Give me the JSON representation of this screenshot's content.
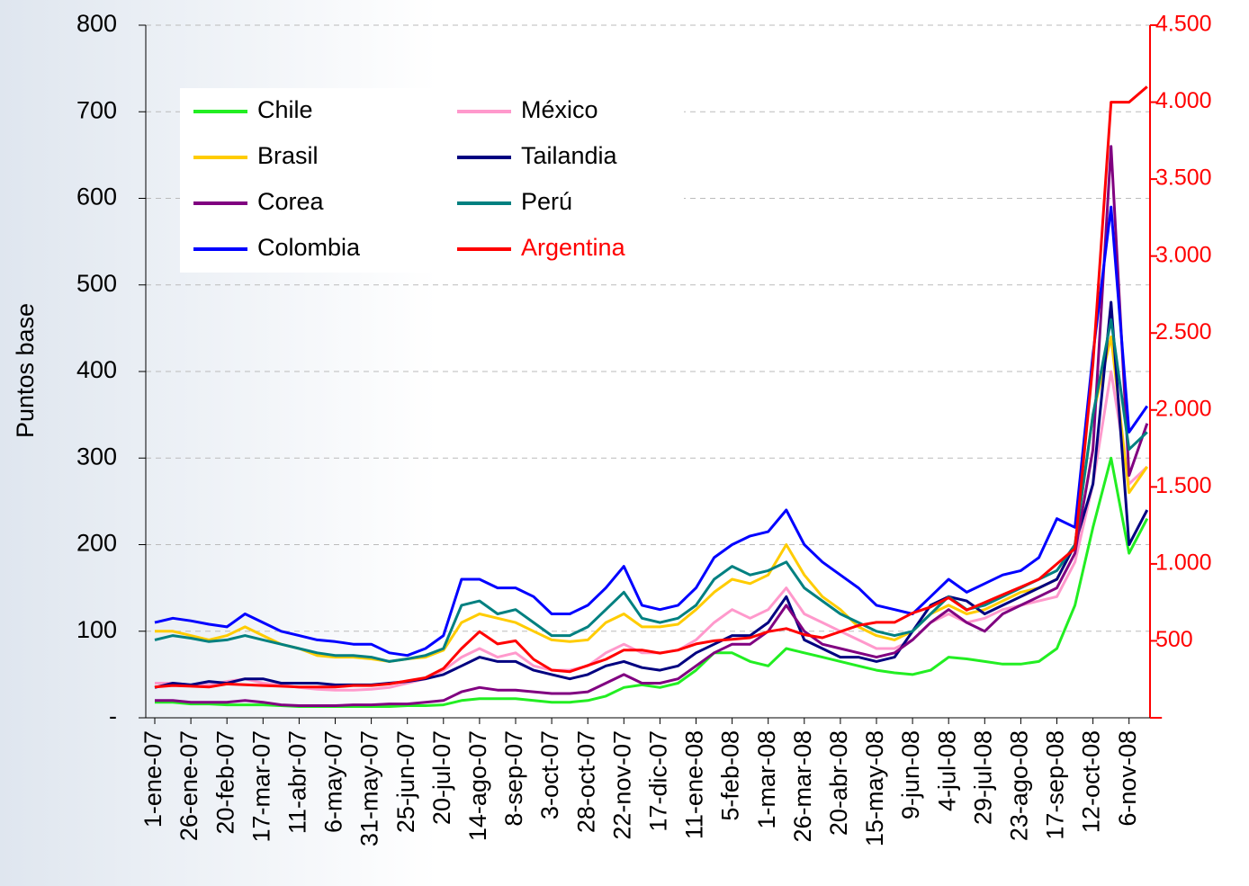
{
  "chart_data": {
    "type": "line",
    "y_label": "Puntos base",
    "categories": [
      "1-ene-07",
      null,
      "26-ene-07",
      null,
      "20-feb-07",
      null,
      "17-mar-07",
      null,
      "11-abr-07",
      null,
      "6-may-07",
      null,
      "31-may-07",
      null,
      "25-jun-07",
      null,
      "20-jul-07",
      null,
      "14-ago-07",
      null,
      "8-sep-07",
      null,
      "3-oct-07",
      null,
      "28-oct-07",
      null,
      "22-nov-07",
      null,
      "17-dic-07",
      null,
      "11-ene-08",
      null,
      "5-feb-08",
      null,
      "1-mar-08",
      null,
      "26-mar-08",
      null,
      "20-abr-08",
      null,
      "15-may-08",
      null,
      "9-jun-08",
      null,
      "4-jul-08",
      null,
      "29-jul-08",
      null,
      "23-ago-08",
      null,
      "17-sep-08",
      null,
      "12-oct-08",
      null,
      "6-nov-08",
      null
    ],
    "ylim": [
      0,
      800
    ],
    "yticks": [
      {
        "value": 0,
        "label": "-"
      },
      100,
      200,
      300,
      400,
      500,
      600,
      700,
      800
    ],
    "y2lim": [
      0,
      4500
    ],
    "y2ticks": [
      {
        "value": 0,
        "label": "-"
      },
      {
        "value": 500,
        "label": "500"
      },
      {
        "value": 1000,
        "label": "1.000"
      },
      {
        "value": 1500,
        "label": "1.500"
      },
      {
        "value": 2000,
        "label": "2.000"
      },
      {
        "value": 2500,
        "label": "2.500"
      },
      {
        "value": 3000,
        "label": "3.000"
      },
      {
        "value": 3500,
        "label": "3.500"
      },
      {
        "value": 4000,
        "label": "4.000"
      },
      {
        "value": 4500,
        "label": "4.500"
      }
    ],
    "grid": true,
    "series": [
      {
        "name": "Chile",
        "color": "#22ee22",
        "values": [
          18,
          18,
          16,
          16,
          15,
          15,
          15,
          14,
          13,
          13,
          13,
          13,
          13,
          13,
          14,
          14,
          15,
          20,
          22,
          22,
          22,
          20,
          18,
          18,
          20,
          25,
          35,
          38,
          35,
          40,
          55,
          75,
          75,
          65,
          60,
          80,
          75,
          70,
          65,
          60,
          55,
          52,
          50,
          55,
          70,
          68,
          65,
          62,
          62,
          65,
          80,
          130,
          220,
          300,
          190,
          230
        ]
      },
      {
        "name": "México",
        "color": "#ff99cc",
        "values": [
          40,
          40,
          38,
          38,
          42,
          45,
          40,
          38,
          35,
          33,
          32,
          32,
          33,
          35,
          40,
          45,
          55,
          70,
          80,
          70,
          75,
          60,
          55,
          55,
          60,
          75,
          85,
          75,
          75,
          78,
          90,
          110,
          125,
          115,
          125,
          150,
          120,
          110,
          100,
          90,
          80,
          80,
          90,
          110,
          120,
          110,
          115,
          125,
          130,
          135,
          140,
          180,
          270,
          400,
          270,
          290
        ]
      },
      {
        "name": "Brasil",
        "color": "#ffcc00",
        "values": [
          100,
          100,
          95,
          90,
          95,
          105,
          95,
          85,
          80,
          72,
          70,
          70,
          68,
          65,
          68,
          70,
          78,
          110,
          120,
          115,
          110,
          100,
          90,
          88,
          90,
          110,
          120,
          105,
          105,
          108,
          125,
          145,
          160,
          155,
          165,
          200,
          165,
          140,
          125,
          105,
          95,
          90,
          100,
          120,
          130,
          120,
          125,
          135,
          145,
          150,
          160,
          200,
          350,
          440,
          260,
          290
        ]
      },
      {
        "name": "Tailandia",
        "color": "#000080",
        "values": [
          35,
          40,
          38,
          42,
          40,
          45,
          45,
          40,
          40,
          40,
          38,
          38,
          38,
          40,
          42,
          45,
          50,
          60,
          70,
          65,
          65,
          55,
          50,
          45,
          50,
          60,
          65,
          58,
          55,
          60,
          75,
          85,
          95,
          95,
          110,
          140,
          90,
          80,
          70,
          70,
          65,
          70,
          100,
          130,
          140,
          135,
          120,
          130,
          140,
          150,
          160,
          200,
          270,
          480,
          200,
          240
        ]
      },
      {
        "name": "Corea",
        "color": "#800080",
        "values": [
          20,
          20,
          18,
          18,
          18,
          20,
          18,
          15,
          14,
          14,
          14,
          15,
          15,
          16,
          16,
          18,
          20,
          30,
          35,
          32,
          32,
          30,
          28,
          28,
          30,
          40,
          50,
          40,
          40,
          45,
          60,
          75,
          85,
          85,
          100,
          130,
          100,
          85,
          80,
          75,
          70,
          75,
          90,
          110,
          125,
          110,
          100,
          120,
          130,
          140,
          150,
          190,
          310,
          660,
          280,
          340
        ]
      },
      {
        "name": "Perú",
        "color": "#008080",
        "values": [
          90,
          95,
          92,
          88,
          90,
          95,
          90,
          85,
          80,
          75,
          72,
          72,
          70,
          65,
          68,
          72,
          80,
          130,
          135,
          120,
          125,
          110,
          95,
          95,
          105,
          125,
          145,
          115,
          110,
          115,
          130,
          160,
          175,
          165,
          170,
          180,
          150,
          135,
          120,
          110,
          100,
          95,
          100,
          120,
          140,
          125,
          130,
          140,
          150,
          160,
          170,
          200,
          350,
          460,
          310,
          330
        ]
      },
      {
        "name": "Colombia",
        "color": "#0000ff",
        "values": [
          110,
          115,
          112,
          108,
          105,
          120,
          110,
          100,
          95,
          90,
          88,
          85,
          85,
          75,
          72,
          80,
          95,
          160,
          160,
          150,
          150,
          140,
          120,
          120,
          130,
          150,
          175,
          130,
          125,
          130,
          150,
          185,
          200,
          210,
          215,
          240,
          200,
          180,
          165,
          150,
          130,
          125,
          120,
          140,
          160,
          145,
          155,
          165,
          170,
          185,
          230,
          220,
          420,
          590,
          330,
          360
        ]
      },
      {
        "name": "Argentina",
        "color": "#ff0000",
        "axis": "y2",
        "values": [
          200,
          210,
          205,
          200,
          220,
          215,
          210,
          205,
          200,
          200,
          200,
          210,
          210,
          220,
          240,
          260,
          320,
          450,
          560,
          480,
          500,
          380,
          310,
          300,
          340,
          380,
          440,
          440,
          420,
          440,
          480,
          500,
          510,
          520,
          560,
          580,
          540,
          520,
          560,
          600,
          620,
          620,
          680,
          720,
          780,
          700,
          750,
          800,
          850,
          900,
          1000,
          1100,
          2300,
          4000,
          4000,
          4100
        ]
      }
    ]
  }
}
